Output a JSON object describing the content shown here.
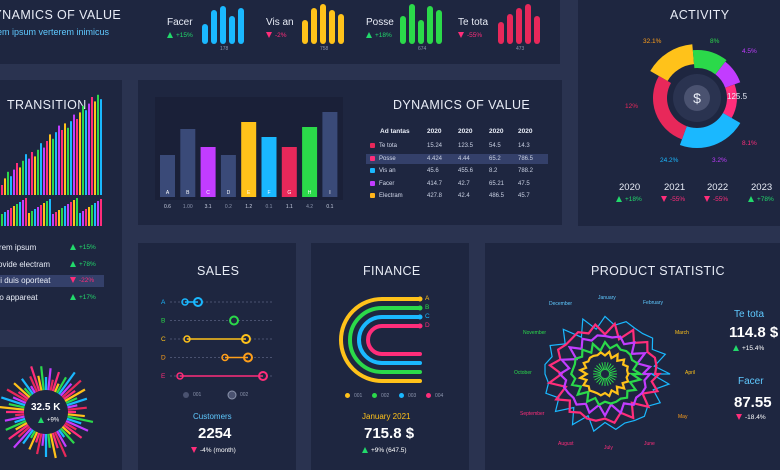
{
  "top": {
    "title": "DYNAMICS OF VALUE",
    "subtitle": "Lorem ipsum verterem inimicus",
    "metrics": [
      {
        "name": "Facer",
        "change": "+15%",
        "dir": "up",
        "value": "178",
        "color": "#1ab8ff",
        "bars": [
          0.5,
          0.85,
          0.95,
          0.7,
          0.9
        ]
      },
      {
        "name": "Vis an",
        "change": "-2%",
        "dir": "down",
        "value": "758",
        "color": "#ffc21a",
        "bars": [
          0.6,
          0.9,
          1.0,
          0.85,
          0.75
        ]
      },
      {
        "name": "Posse",
        "change": "+18%",
        "dir": "up",
        "value": "674",
        "color": "#2bd94a",
        "bars": [
          0.7,
          1.0,
          0.6,
          0.95,
          0.85
        ]
      },
      {
        "name": "Te tota",
        "change": "-55%",
        "dir": "down",
        "value": "473",
        "color": "#e8285a",
        "bars": [
          0.55,
          0.75,
          0.9,
          1.0,
          0.7
        ]
      }
    ]
  },
  "activity": {
    "title": "ACTIVITY",
    "center_value": "125.5",
    "percents": {
      "p1": "32.1%",
      "p2": "8%",
      "p3": "4.5%",
      "p4": "12%",
      "p5": "8.1%",
      "p6": "24.2%",
      "p7": "3.2%"
    },
    "years": [
      {
        "year": "2020",
        "change": "+18%",
        "dir": "up"
      },
      {
        "year": "2021",
        "change": "-55%",
        "dir": "down"
      },
      {
        "year": "2022",
        "change": "-55%",
        "dir": "down"
      },
      {
        "year": "2023",
        "change": "+78%",
        "dir": "up"
      }
    ]
  },
  "transition": {
    "title": "TRANSITION",
    "items": [
      {
        "label": "Lorem ipsum",
        "change": "+15%",
        "dir": "up"
      },
      {
        "label": "Provide electram",
        "change": "+78%",
        "dir": "up"
      },
      {
        "label": "Ubi duis oporteat",
        "change": "-22%",
        "dir": "down"
      },
      {
        "label": "Eco appareat",
        "change": "+17%",
        "dir": "up"
      }
    ]
  },
  "dynamics": {
    "title": "DYNAMICS OF VALUE",
    "bars": {
      "letters": [
        "A",
        "B",
        "C",
        "D",
        "E",
        "F",
        "G",
        "H",
        "I"
      ],
      "values": [
        0.6,
        1.0,
        3.1,
        0.2,
        1.2,
        0.1,
        1.1,
        4.2,
        0.1
      ],
      "value_labels": [
        "0.6",
        "1.00",
        "3.1",
        "0.2",
        "1.2",
        "0.1",
        "1.1",
        "4.2",
        "0.1"
      ]
    },
    "table": {
      "headers": [
        "Ad tantas",
        "2020",
        "2020",
        "2020",
        "2020"
      ],
      "rows": [
        {
          "name": "Te tota",
          "color": "#e8285a",
          "cells": [
            "15.24",
            "123.5",
            "54.5",
            "14.3"
          ]
        },
        {
          "name": "Posse",
          "color": "#ff2d7a",
          "cells": [
            "4.424",
            "4.44",
            "65.2",
            "786.5"
          ]
        },
        {
          "name": "Vis an",
          "color": "#1ab8ff",
          "cells": [
            "45.6",
            "455.6",
            "8.2",
            "788.2"
          ]
        },
        {
          "name": "Facer",
          "color": "#c23cff",
          "cells": [
            "414.7",
            "42.7",
            "65.21",
            "47.5"
          ]
        },
        {
          "name": "Electram",
          "color": "#ffb41a",
          "cells": [
            "427.8",
            "42.4",
            "486.5",
            "45.7"
          ]
        }
      ]
    }
  },
  "gauge": {
    "value": "32.5 K",
    "change": "+9%"
  },
  "sales": {
    "title": "SALES",
    "rows": [
      "A",
      "B",
      "C",
      "D",
      "E"
    ],
    "legend": [
      "001",
      "002"
    ],
    "footer_label": "Customers",
    "footer_value": "2254",
    "footer_change": "-4% (month)"
  },
  "finance": {
    "title": "FINANCE",
    "labels": [
      "A",
      "B",
      "C",
      "D"
    ],
    "legend": [
      "001",
      "002",
      "003",
      "004"
    ],
    "footer_label": "January 2021",
    "footer_value": "715.8 $",
    "footer_change": "+9% (647.5)"
  },
  "product": {
    "title": "PRODUCT STATISTIC",
    "months": [
      "January",
      "February",
      "March",
      "April",
      "May",
      "June",
      "July",
      "August",
      "September",
      "October",
      "November",
      "December"
    ],
    "stat1": {
      "label": "Te tota",
      "value": "114.8 $",
      "change": "+15.4%"
    },
    "stat2": {
      "label": "Facer",
      "value": "87.55",
      "change": "-18.4%"
    }
  },
  "colors": {
    "panel": "#1e2640",
    "bg": "#2a3350",
    "green": "#22d96b",
    "red": "#ff2d7a"
  }
}
